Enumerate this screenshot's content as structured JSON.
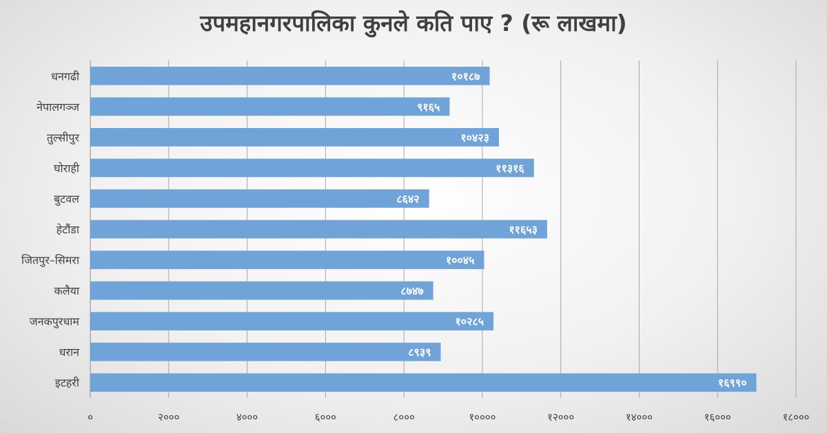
{
  "chart_data": {
    "type": "bar",
    "orientation": "horizontal",
    "title": "उपमहानगरपालिका कुनले कति पाए ? (रू लाखमा)",
    "xlabel": "",
    "ylabel": "",
    "categories": [
      "धनगढी",
      "नेपालगञ्ज",
      "तुल्सीपुर",
      "घोराही",
      "बुटवल",
      "हेटौंडा",
      "जितपुर–सिमरा",
      "कलैया",
      "जनकपुरधाम",
      "धरान",
      "इटहरी"
    ],
    "values": [
      10187,
      9165,
      10423,
      11316,
      8642,
      11653,
      10045,
      8747,
      10285,
      8939,
      16990
    ],
    "value_labels": [
      "१०१८७",
      "९१६५",
      "१०४२३",
      "११३१६",
      "८६४२",
      "११६५३",
      "१००४५",
      "८७४७",
      "१०२८५",
      "८९३९",
      "१६९९०"
    ],
    "xlim": [
      0,
      18000
    ],
    "ticks": [
      0,
      2000,
      4000,
      6000,
      8000,
      10000,
      12000,
      14000,
      16000,
      18000
    ],
    "tick_labels": [
      "०",
      "२०००",
      "४०००",
      "६०००",
      "८०००",
      "१००००",
      "१२०००",
      "१४०००",
      "१६०००",
      "१८०००"
    ],
    "grid": true,
    "legend": "none",
    "bar_color": "#70a4d9"
  }
}
